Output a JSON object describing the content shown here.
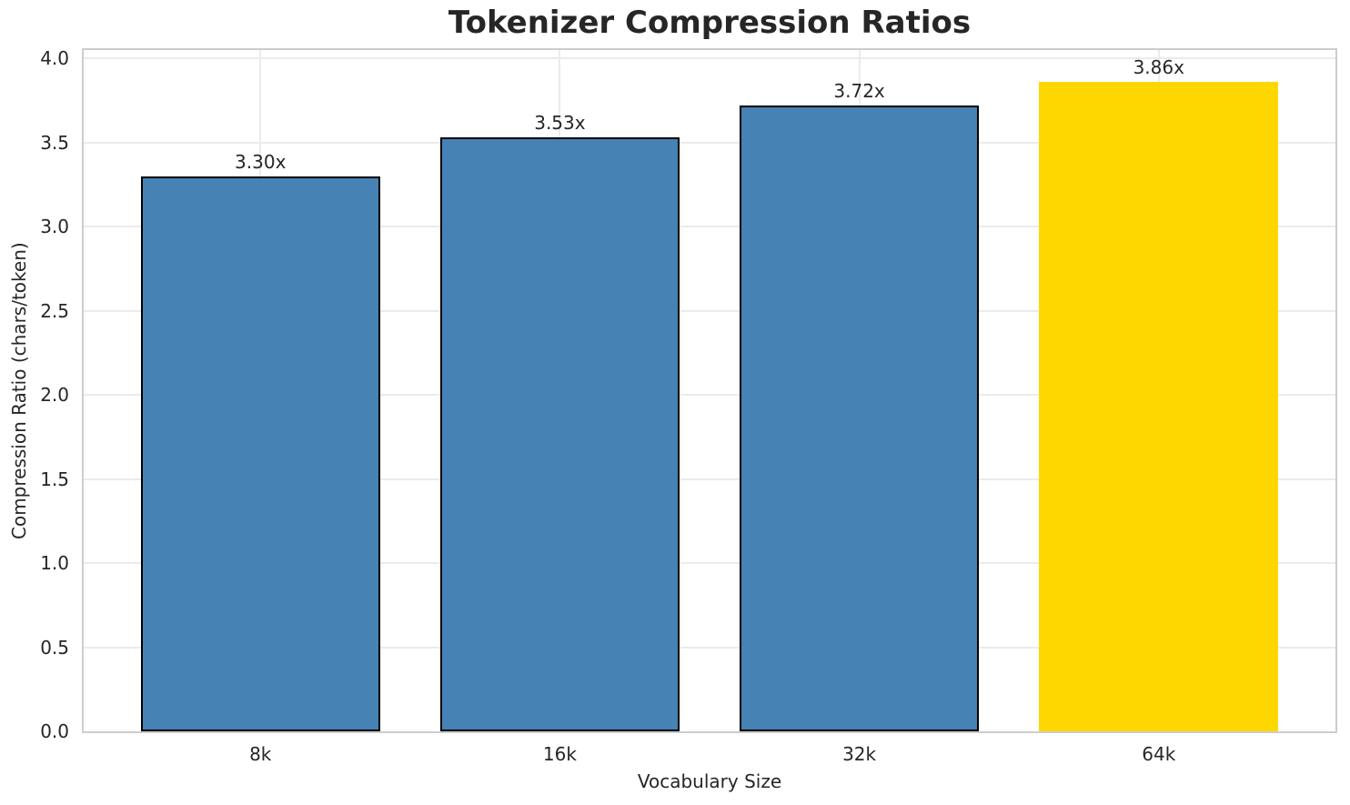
{
  "chart_data": {
    "type": "bar",
    "title": "Tokenizer Compression Ratios",
    "xlabel": "Vocabulary Size",
    "ylabel": "Compression Ratio (chars/token)",
    "categories": [
      "8k",
      "16k",
      "32k",
      "64k"
    ],
    "values": [
      3.3,
      3.53,
      3.72,
      3.86
    ],
    "bar_labels": [
      "3.30x",
      "3.53x",
      "3.72x",
      "3.86x"
    ],
    "bar_colors": [
      "#4682b4",
      "#4682b4",
      "#4682b4",
      "#ffd700"
    ],
    "bar_edge_colors": [
      "#000000",
      "#000000",
      "#000000",
      "none"
    ],
    "highlight_color": "#ffd700",
    "base_color": "#4682b4",
    "ylim": [
      0,
      4.05
    ],
    "yticks": [
      0.0,
      0.5,
      1.0,
      1.5,
      2.0,
      2.5,
      3.0,
      3.5,
      4.0
    ],
    "ytick_labels": [
      "0.0",
      "0.5",
      "1.0",
      "1.5",
      "2.0",
      "2.5",
      "3.0",
      "3.5",
      "4.0"
    ],
    "grid": true,
    "grid_color": "#ebebeb",
    "spine_color": "#cdcdcd",
    "text_color": "#262626",
    "legend": "none"
  }
}
